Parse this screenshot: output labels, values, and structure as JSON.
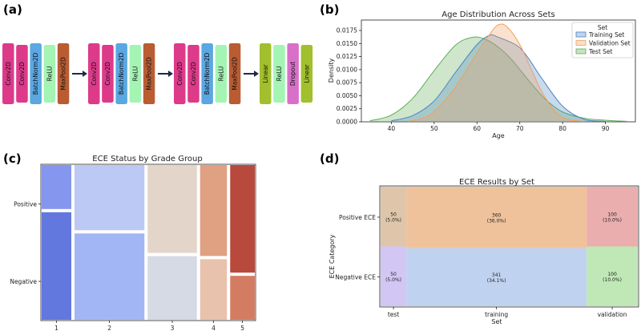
{
  "panel_labels": {
    "a": "(a)",
    "b": "(b)",
    "c": "(c)",
    "d": "(d)"
  },
  "diagram": {
    "groups": [
      [
        {
          "label": "Conv2D",
          "color": "#dd3a8a"
        },
        {
          "label": "Conv2D",
          "color": "#dd3a8a"
        },
        {
          "label": "BatchNorm2D",
          "color": "#5aa7e2"
        },
        {
          "label": "ReLU",
          "color": "#a4f4b4"
        },
        {
          "label": "MaxPool2D",
          "color": "#b95c32"
        }
      ],
      [
        {
          "label": "Conv2D",
          "color": "#dd3a8a"
        },
        {
          "label": "Conv2D",
          "color": "#dd3a8a"
        },
        {
          "label": "BatchNorm2D",
          "color": "#5aa7e2"
        },
        {
          "label": "ReLU",
          "color": "#a4f4b4"
        },
        {
          "label": "MaxPool2D",
          "color": "#b95c32"
        }
      ],
      [
        {
          "label": "Conv2D",
          "color": "#dd3a8a"
        },
        {
          "label": "Conv2D",
          "color": "#dd3a8a"
        },
        {
          "label": "BatchNorm2D",
          "color": "#5aa7e2"
        },
        {
          "label": "ReLU",
          "color": "#a4f4b4"
        },
        {
          "label": "MaxPool2D",
          "color": "#b95c32"
        }
      ],
      [
        {
          "label": "Linear",
          "color": "#a2bf2d"
        },
        {
          "label": "ReLU",
          "color": "#a4f4b4"
        },
        {
          "label": "Dropout",
          "color": "#d870c9"
        },
        {
          "label": "Linear",
          "color": "#a2bf2d"
        }
      ]
    ],
    "arrow_color": "#1f2a44"
  },
  "chart_data": [
    {
      "id": "b",
      "type": "area",
      "title": "Age Distribution Across Sets",
      "xlabel": "Age",
      "ylabel": "Density",
      "xlim": [
        33,
        97
      ],
      "ylim": [
        0,
        0.0195
      ],
      "xticks": [
        "40",
        "50",
        "60",
        "70",
        "80",
        "90"
      ],
      "yticks": [
        "0.0000",
        "0.0025",
        "0.0050",
        "0.0075",
        "0.0100",
        "0.0125",
        "0.0150",
        "0.0175"
      ],
      "legend_title": "Set",
      "legend_position": "top-right",
      "series": [
        {
          "name": "Training Set",
          "color": "#4c84c4",
          "x": [
            40,
            45,
            50,
            55,
            60,
            63,
            65,
            68,
            70,
            72,
            75,
            80,
            85,
            90
          ],
          "y": [
            0.0002,
            0.0012,
            0.004,
            0.0095,
            0.0148,
            0.0166,
            0.0162,
            0.0152,
            0.0142,
            0.0122,
            0.0085,
            0.003,
            0.0005,
            0.0001
          ]
        },
        {
          "name": "Validation Set",
          "color": "#f0a060",
          "x": [
            44,
            47,
            50,
            55,
            60,
            63,
            65,
            67,
            70,
            73,
            75,
            78,
            81,
            85
          ],
          "y": [
            0.0001,
            0.0006,
            0.002,
            0.0067,
            0.0132,
            0.0168,
            0.0186,
            0.0182,
            0.0148,
            0.0095,
            0.006,
            0.0022,
            0.0005,
            0.0001
          ]
        },
        {
          "name": "Test Set",
          "color": "#5fad56",
          "x": [
            35,
            40,
            45,
            50,
            55,
            59,
            62,
            65,
            68,
            72,
            76,
            80,
            85,
            90,
            95
          ],
          "y": [
            0.0002,
            0.0013,
            0.0045,
            0.0098,
            0.0147,
            0.0162,
            0.0158,
            0.0143,
            0.012,
            0.008,
            0.0043,
            0.0019,
            0.0007,
            0.0003,
            0.0001
          ]
        }
      ]
    },
    {
      "id": "c",
      "type": "mosaic",
      "title": "ECE Status by Grade Group",
      "categories": [
        "1",
        "2",
        "3",
        "4",
        "5"
      ],
      "column_widths": [
        0.148,
        0.349,
        0.246,
        0.134,
        0.123
      ],
      "rows": [
        "Positive",
        "Negative"
      ],
      "positive_share": [
        0.29,
        0.43,
        0.58,
        0.6,
        0.71
      ],
      "colors": {
        "Positive": [
          "#8496ee",
          "#bbc9f4",
          "#e4d5ca",
          "#e0a082",
          "#b8493d"
        ],
        "Negative": [
          "#6378de",
          "#a2b6f6",
          "#d5dae5",
          "#e8c2ad",
          "#d47c62"
        ]
      }
    },
    {
      "id": "d",
      "type": "mosaic",
      "title": "ECE Results by Set",
      "xlabel": "Set",
      "ylabel": "ECE Category",
      "categories": [
        "test",
        "training",
        "validation"
      ],
      "column_widths": [
        0.1,
        0.701,
        0.199
      ],
      "rows": [
        "Positive ECE",
        "Negative ECE"
      ],
      "positive_share": [
        0.5,
        0.514,
        0.5
      ],
      "cells": {
        "Positive ECE": [
          {
            "count": "50",
            "pct": "(5.0%)"
          },
          {
            "count": "360",
            "pct": "(36.0%)"
          },
          {
            "count": "100",
            "pct": "(10.0%)"
          }
        ],
        "Negative ECE": [
          {
            "count": "50",
            "pct": "(5.0%)"
          },
          {
            "count": "341",
            "pct": "(34.1%)"
          },
          {
            "count": "100",
            "pct": "(10.0%)"
          }
        ]
      },
      "colors": {
        "Positive ECE": [
          "#dfc6aa",
          "#f0c29c",
          "#ebaeae"
        ],
        "Negative ECE": [
          "#d2c6f5",
          "#bfd3f1",
          "#bfe8b6"
        ]
      }
    }
  ]
}
